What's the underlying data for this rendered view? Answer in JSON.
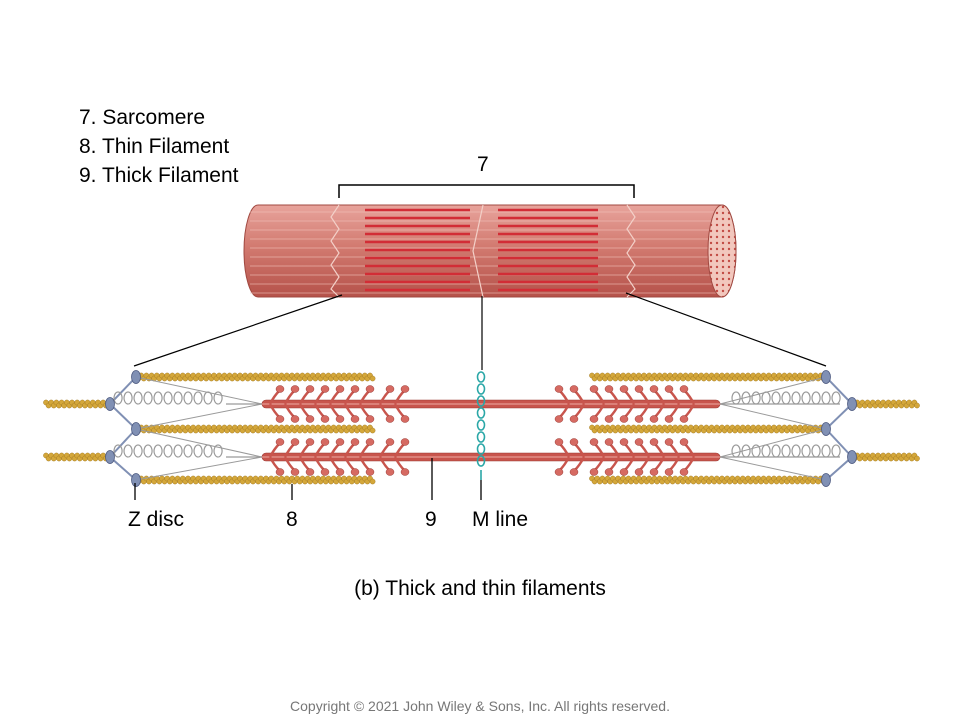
{
  "legend": {
    "items": [
      "7. Sarcomere",
      "8. Thin Filament",
      "9. Thick Filament"
    ]
  },
  "labels": {
    "sarcomere_number": "7",
    "z_disc": "Z disc",
    "thin_filament_number": "8",
    "thick_filament_number": "9",
    "m_line": "M line"
  },
  "caption": "(b) Thick and thin filaments",
  "copyright": "Copyright © 2021 John Wiley & Sons, Inc. All rights reserved.",
  "colors": {
    "myofibril": "#c8605a",
    "myofibril_stripe": "#d22d36",
    "myosin": "#c8554d",
    "actin": "#d4a73a",
    "titin": "#9a9a9a",
    "z_disc": "#8090b4",
    "m_line": "#2aa7a7"
  }
}
